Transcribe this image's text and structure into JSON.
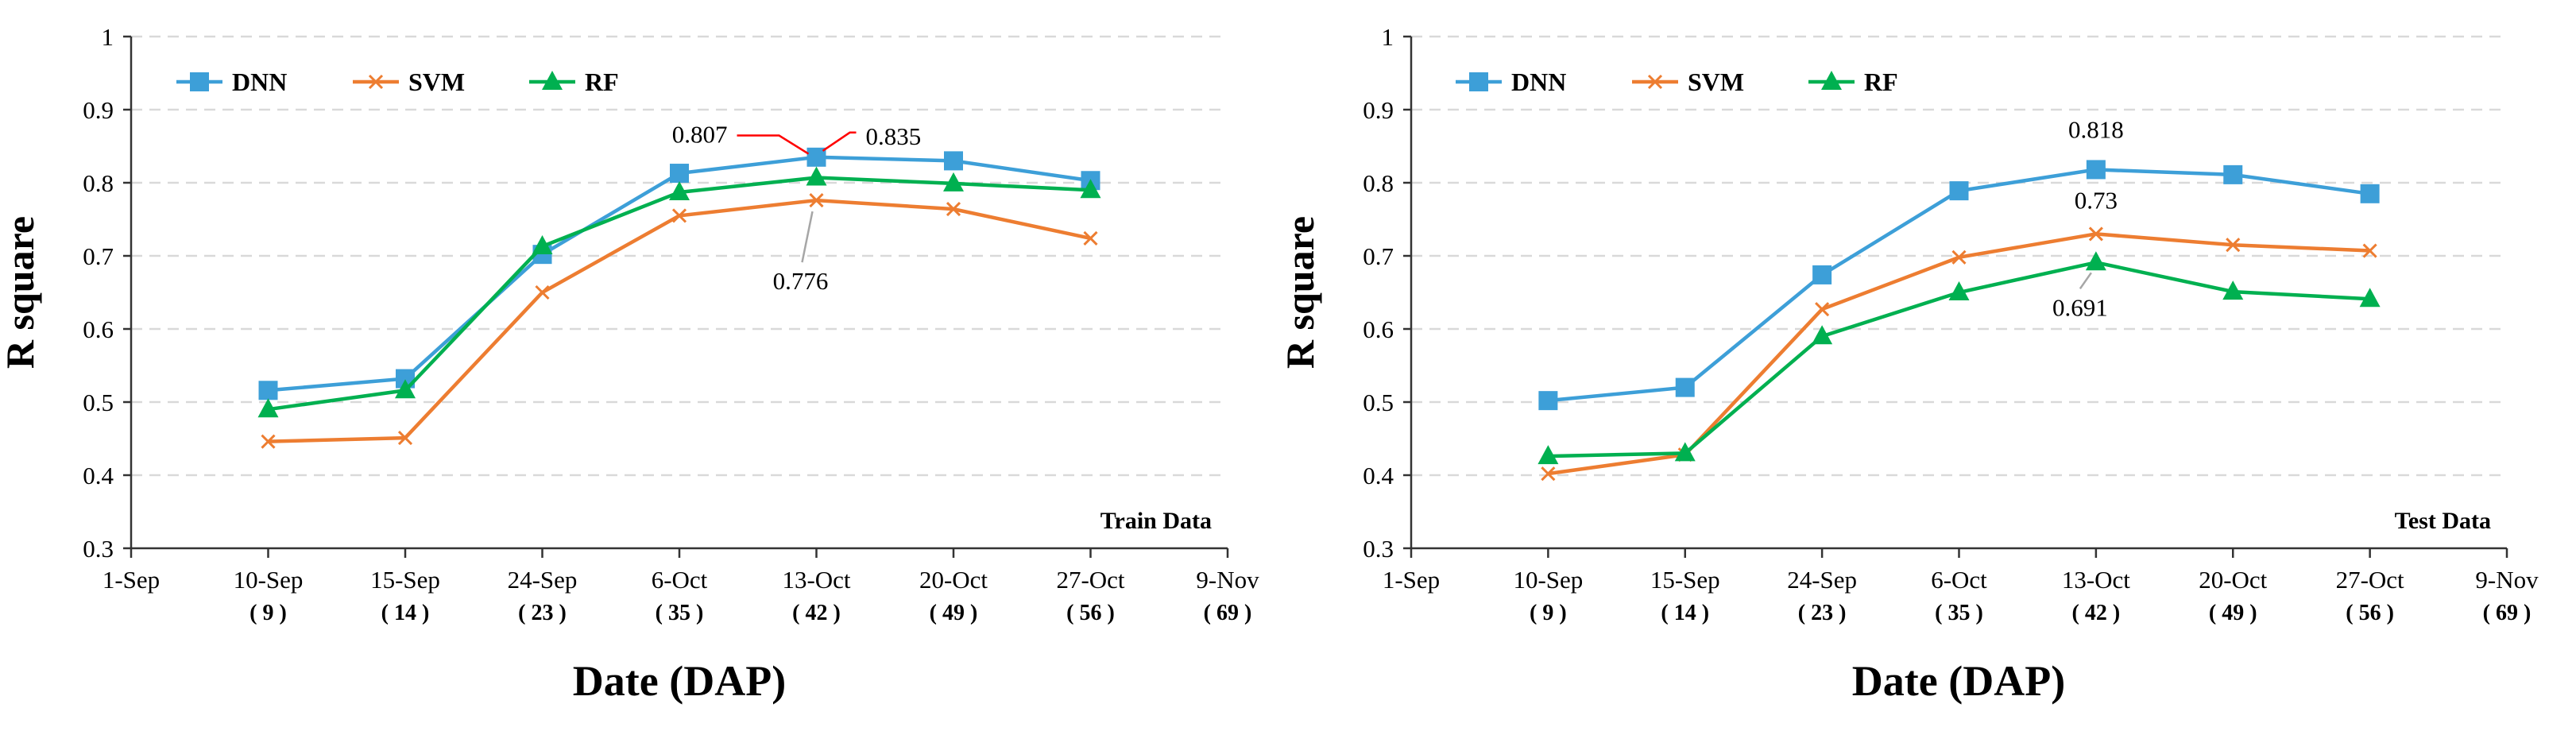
{
  "chart_data": [
    {
      "type": "line",
      "panel_label": "Train Data",
      "categories": [
        "1-Sep",
        "10-Sep",
        "15-Sep",
        "24-Sep",
        "6-Oct",
        "13-Oct",
        "20-Oct",
        "27-Oct",
        "9-Nov"
      ],
      "sublabels": [
        "",
        "( 9 )",
        "( 14 )",
        "( 23 )",
        "( 35 )",
        "( 42 )",
        "( 49 )",
        "( 56 )",
        "( 69 )"
      ],
      "xlabel": "Date (DAP)",
      "ylabel": "R square",
      "ylim": [
        0.3,
        1.0
      ],
      "yticks": [
        "0.3",
        "0.4",
        "0.5",
        "0.6",
        "0.7",
        "0.8",
        "0.9",
        "1"
      ],
      "grid": true,
      "legend_position": "top-left",
      "series": [
        {
          "name": "DNN",
          "color": "#3D9FD8",
          "marker": "square",
          "values": [
            null,
            0.516,
            0.532,
            0.702,
            0.813,
            0.835,
            0.83,
            0.803,
            null
          ]
        },
        {
          "name": "SVM",
          "color": "#ED7D31",
          "marker": "x",
          "values": [
            null,
            0.446,
            0.451,
            0.65,
            0.755,
            0.776,
            0.764,
            0.724,
            null
          ]
        },
        {
          "name": "RF",
          "color": "#00B050",
          "marker": "triangle",
          "values": [
            null,
            0.49,
            0.516,
            0.713,
            0.787,
            0.807,
            0.799,
            0.79,
            null
          ]
        }
      ],
      "annotations": [
        {
          "text": "0.807",
          "series": "RF",
          "category": "13-Oct",
          "arrow_color": "#FF0000"
        },
        {
          "text": "0.835",
          "series": "DNN",
          "category": "13-Oct",
          "arrow_color": "#FF0000"
        },
        {
          "text": "0.776",
          "series": "SVM",
          "category": "13-Oct",
          "arrow_color": "#A6A6A6"
        }
      ]
    },
    {
      "type": "line",
      "panel_label": "Test Data",
      "categories": [
        "1-Sep",
        "10-Sep",
        "15-Sep",
        "24-Sep",
        "6-Oct",
        "13-Oct",
        "20-Oct",
        "27-Oct",
        "9-Nov"
      ],
      "sublabels": [
        "",
        "( 9 )",
        "( 14 )",
        "( 23 )",
        "( 35 )",
        "( 42 )",
        "( 49 )",
        "( 56 )",
        "( 69 )"
      ],
      "xlabel": "Date (DAP)",
      "ylabel": "R square",
      "ylim": [
        0.3,
        1.0
      ],
      "yticks": [
        "0.3",
        "0.4",
        "0.5",
        "0.6",
        "0.7",
        "0.8",
        "0.9",
        "1"
      ],
      "grid": true,
      "legend_position": "top-left",
      "series": [
        {
          "name": "DNN",
          "color": "#3D9FD8",
          "marker": "square",
          "values": [
            null,
            0.502,
            0.52,
            0.674,
            0.789,
            0.818,
            0.811,
            0.785,
            null
          ]
        },
        {
          "name": "SVM",
          "color": "#ED7D31",
          "marker": "x",
          "values": [
            null,
            0.402,
            0.428,
            0.627,
            0.698,
            0.73,
            0.715,
            0.707,
            null
          ]
        },
        {
          "name": "RF",
          "color": "#00B050",
          "marker": "triangle",
          "values": [
            null,
            0.426,
            0.43,
            0.59,
            0.65,
            0.691,
            0.651,
            0.641,
            null
          ]
        }
      ],
      "annotations": [
        {
          "text": "0.818",
          "series": "DNN",
          "category": "13-Oct"
        },
        {
          "text": "0.73",
          "series": "SVM",
          "category": "13-Oct"
        },
        {
          "text": "0.691",
          "series": "RF",
          "category": "13-Oct",
          "arrow_color": "#A6A6A6"
        }
      ]
    }
  ]
}
